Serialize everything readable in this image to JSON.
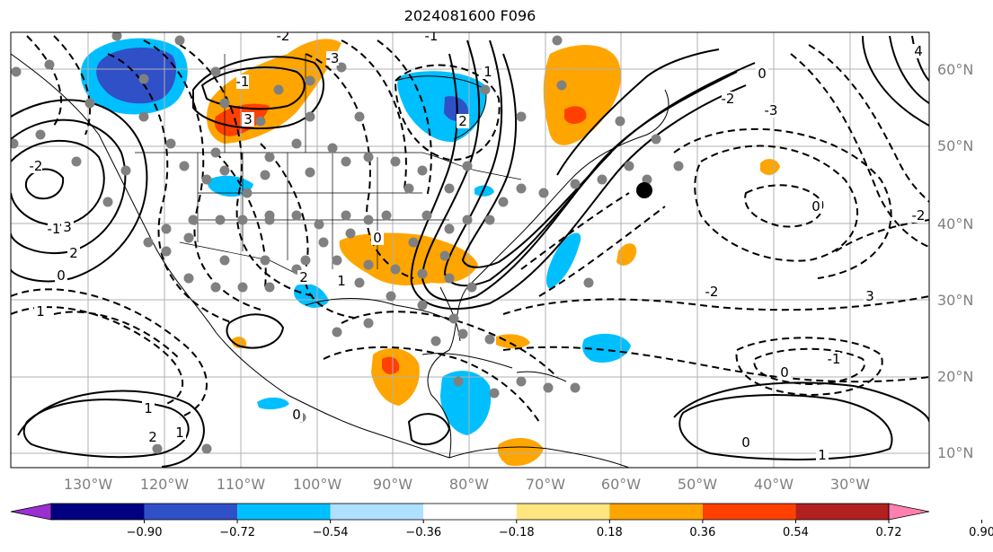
{
  "title": "2024081600 F096",
  "lat_labels": [
    "60°N",
    "50°N",
    "40°N",
    "30°N",
    "20°N",
    "10°N"
  ],
  "lon_labels": [
    "130°W",
    "120°W",
    "110°W",
    "100°W",
    "90°W",
    "80°W",
    "70°W",
    "60°W",
    "50°W",
    "40°W",
    "30°W"
  ],
  "colorbar": {
    "labels": [
      "−0.90",
      "−0.72",
      "−0.54",
      "−0.36",
      "−0.18",
      "0.18",
      "0.36",
      "0.54",
      "0.72",
      "0.90"
    ],
    "colors": [
      "#9b30d0",
      "#000080",
      "#3050c8",
      "#00bfff",
      "#b0e0ff",
      "#ffffff",
      "#ffe680",
      "#ffa500",
      "#ff4000",
      "#b22020",
      "#ff80b0"
    ]
  },
  "contour_labels": [
    "0",
    "1",
    "2",
    "3",
    "-1",
    "-2",
    "-3",
    "3",
    "2",
    "1",
    "0",
    "2",
    "1",
    "-1",
    "-2",
    "0",
    "1",
    "2",
    "3",
    "0",
    "-1",
    "-2",
    "4",
    "-3",
    "-2",
    "0",
    "1",
    "2",
    "-2",
    "-1",
    "0",
    "1",
    "0"
  ],
  "colors": {
    "contour": "#000000",
    "station": "#808080",
    "grid": "#b0b0b0",
    "marker": "#000000"
  }
}
